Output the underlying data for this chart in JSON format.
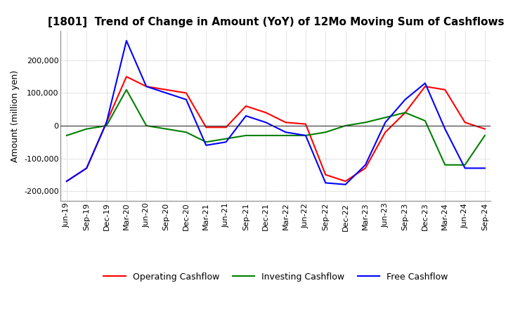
{
  "title": "[1801]  Trend of Change in Amount (YoY) of 12Mo Moving Sum of Cashflows",
  "ylabel": "Amount (million yen)",
  "title_fontsize": 11,
  "label_fontsize": 9,
  "tick_fontsize": 8,
  "background_color": "#ffffff",
  "grid_color": "#aaaaaa",
  "x_labels": [
    "Jun-19",
    "Sep-19",
    "Dec-19",
    "Mar-20",
    "Jun-20",
    "Sep-20",
    "Dec-20",
    "Mar-21",
    "Jun-21",
    "Sep-21",
    "Dec-21",
    "Mar-22",
    "Jun-22",
    "Sep-22",
    "Dec-22",
    "Mar-23",
    "Jun-23",
    "Sep-23",
    "Dec-23",
    "Mar-24",
    "Jun-24",
    "Sep-24"
  ],
  "operating": [
    -170000,
    -130000,
    10000,
    150000,
    120000,
    110000,
    100000,
    -5000,
    -5000,
    60000,
    40000,
    10000,
    5000,
    -150000,
    -170000,
    -130000,
    -20000,
    40000,
    120000,
    110000,
    10000,
    -10000
  ],
  "investing": [
    -30000,
    -10000,
    0,
    110000,
    0,
    -10000,
    -20000,
    -50000,
    -40000,
    -30000,
    -30000,
    -30000,
    -30000,
    -20000,
    0,
    10000,
    25000,
    40000,
    15000,
    -120000,
    -120000,
    -30000
  ],
  "free": [
    -170000,
    -130000,
    10000,
    260000,
    120000,
    100000,
    80000,
    -60000,
    -50000,
    30000,
    10000,
    -20000,
    -30000,
    -175000,
    -180000,
    -120000,
    10000,
    80000,
    130000,
    -10000,
    -130000,
    -130000
  ],
  "ylim": [
    -230000,
    290000
  ],
  "yticks": [
    -200000,
    -100000,
    0,
    100000,
    200000
  ],
  "line_colors": {
    "operating": "#ff0000",
    "investing": "#008000",
    "free": "#0000ff"
  },
  "legend_labels": {
    "operating": "Operating Cashflow",
    "investing": "Investing Cashflow",
    "free": "Free Cashflow"
  }
}
